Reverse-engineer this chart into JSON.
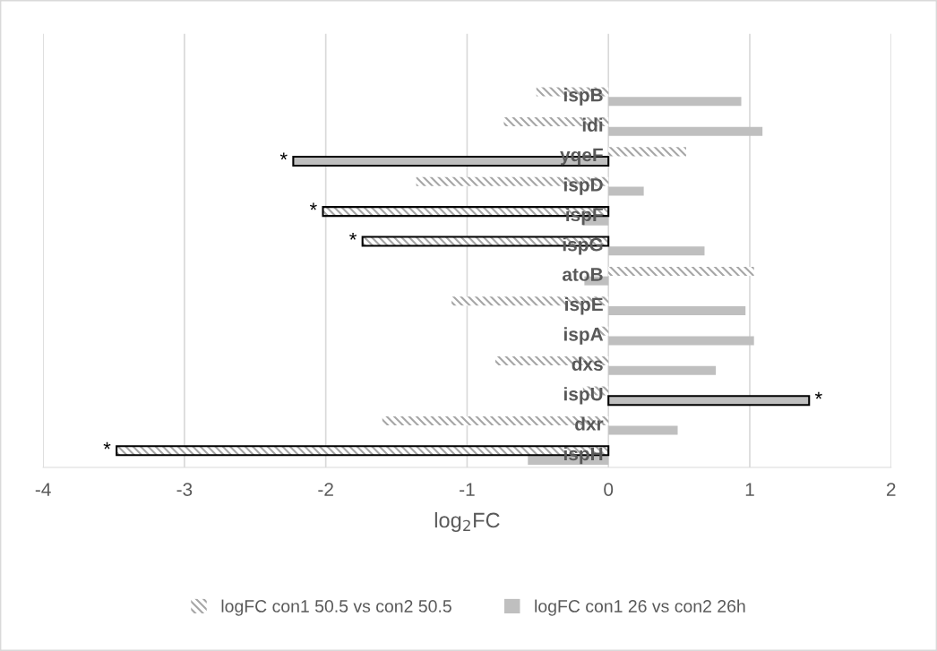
{
  "chart_data": {
    "type": "bar",
    "orientation": "horizontal",
    "xlabel": "log$_{2}$FC",
    "categories": [
      "ispB",
      "idi",
      "yqeF",
      "ispD",
      "ispF",
      "ispG",
      "atoB",
      "ispE",
      "ispA",
      "dxs",
      "ispU",
      "dxr",
      "ispH"
    ],
    "series": [
      {
        "name": "logFC con1 50.5 vs con2 50.5",
        "color": "#a6a6a6",
        "values": [
          -0.51,
          -0.74,
          0.55,
          -1.36,
          -2.02,
          -1.74,
          1.03,
          -1.11,
          -0.08,
          -0.8,
          -0.18,
          -1.6,
          -3.48
        ]
      },
      {
        "name": "logFC con1 26 vs con2 26h",
        "color": "#bfbfbf",
        "values": [
          0.94,
          1.09,
          -2.23,
          0.25,
          -0.18,
          0.68,
          -0.17,
          0.97,
          1.03,
          0.76,
          1.42,
          0.49,
          -0.57
        ]
      }
    ],
    "xlim": [
      -4,
      2
    ],
    "xticks": [
      -4,
      -3,
      -2,
      -1,
      0,
      1,
      2
    ],
    "grid": "x",
    "legend": "bottom",
    "annotations": [
      {
        "text": "*",
        "x": -2.23,
        "y": "yqeF"
      },
      {
        "text": "*",
        "x": -2.02,
        "y": "ispF"
      },
      {
        "text": "*",
        "x": -1.74,
        "y": "ispG"
      },
      {
        "text": "*",
        "x": 1.42,
        "y": "ispU"
      },
      {
        "text": "*",
        "x": -3.48,
        "y": "ispH"
      }
    ]
  }
}
